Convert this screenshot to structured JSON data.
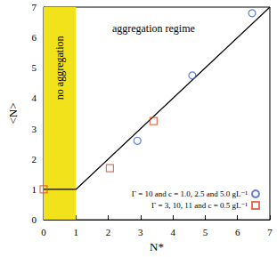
{
  "chart_data": {
    "type": "scatter",
    "x_label": "N*",
    "y_label": "<N>",
    "xlim": [
      0,
      7
    ],
    "ylim": [
      0,
      7
    ],
    "xticks": [
      0,
      1,
      2,
      3,
      4,
      5,
      6,
      7
    ],
    "yticks": [
      0,
      1,
      2,
      3,
      4,
      5,
      6,
      7
    ],
    "grid": false,
    "legend": "lower right",
    "series": [
      {
        "type": "line",
        "color": "#000000",
        "line_style": "solid",
        "x": [
          0,
          1,
          7
        ],
        "values": [
          1,
          1,
          7
        ]
      },
      {
        "type": "scatter",
        "name": "Γ = 10 and c = 1.0, 2.5 and 5.0 gL⁻¹",
        "color": "#3b5fd0",
        "marker": "circle",
        "x": [
          2.9,
          4.6,
          6.45
        ],
        "values": [
          2.6,
          4.75,
          6.8
        ]
      },
      {
        "type": "scatter",
        "name": "Γ = 3, 10, 11 and c = 0.5 gL⁻¹",
        "color": "#d9532b",
        "marker": "square",
        "x": [
          0,
          2.05,
          3.4
        ],
        "values": [
          1.0,
          1.7,
          3.25
        ]
      }
    ],
    "shaded_region": {
      "x": [
        0,
        1
      ],
      "color": "#f2e21c",
      "label": "no aggregation",
      "label_x": 0.5,
      "label_y": 5.0
    },
    "annotations": [
      {
        "text": "aggregation regime",
        "x": 3.4,
        "y": 6.3
      }
    ]
  }
}
